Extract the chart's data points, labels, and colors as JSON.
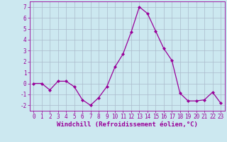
{
  "x": [
    0,
    1,
    2,
    3,
    4,
    5,
    6,
    7,
    8,
    9,
    10,
    11,
    12,
    13,
    14,
    15,
    16,
    17,
    18,
    19,
    20,
    21,
    22,
    23
  ],
  "y": [
    0,
    0,
    -0.6,
    0.2,
    0.2,
    -0.3,
    -1.5,
    -2.0,
    -1.3,
    -0.3,
    1.5,
    2.7,
    4.7,
    7.0,
    6.4,
    4.8,
    3.2,
    2.1,
    -0.9,
    -1.6,
    -1.6,
    -1.5,
    -0.8,
    -1.8
  ],
  "line_color": "#990099",
  "marker": "D",
  "marker_size": 2.0,
  "linewidth": 0.9,
  "xlabel": "Windchill (Refroidissement éolien,°C)",
  "xlabel_fontsize": 6.5,
  "ylabel_ticks": [
    -2,
    -1,
    0,
    1,
    2,
    3,
    4,
    5,
    6,
    7
  ],
  "xtick_labels": [
    "0",
    "1",
    "2",
    "3",
    "4",
    "5",
    "6",
    "7",
    "8",
    "9",
    "10",
    "11",
    "12",
    "13",
    "14",
    "15",
    "16",
    "17",
    "18",
    "19",
    "20",
    "21",
    "22",
    "23"
  ],
  "xlim": [
    -0.5,
    23.5
  ],
  "ylim": [
    -2.5,
    7.5
  ],
  "bg_color": "#cce8f0",
  "grid_color": "#aabbcc",
  "tick_color": "#990099",
  "tick_fontsize": 5.5,
  "spine_color": "#990099"
}
